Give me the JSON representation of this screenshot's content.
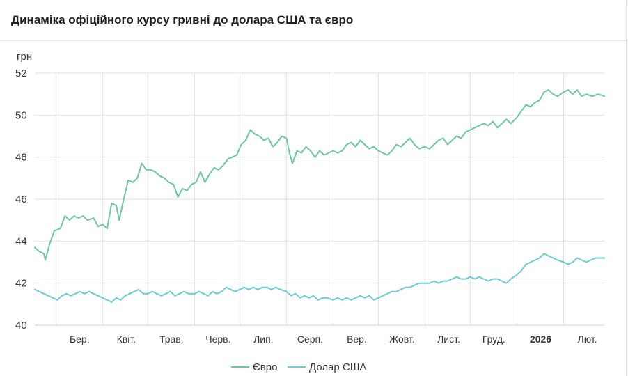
{
  "header": {
    "title": "Динаміка офіційного курсу гривні до долара США та євро"
  },
  "chart_data": {
    "type": "line",
    "title": "Динаміка офіційного курсу гривні до долара США та євро",
    "ylabel": "грн",
    "ylim": [
      40,
      52
    ],
    "yticks": [
      40,
      42,
      44,
      46,
      48,
      50,
      52
    ],
    "xlim": [
      "2025-02-15",
      "2026-02-28"
    ],
    "xticks": [
      {
        "date": "2025-03-01",
        "label": "Бер.",
        "bold": false
      },
      {
        "date": "2025-04-01",
        "label": "Квіт.",
        "bold": false
      },
      {
        "date": "2025-05-01",
        "label": "Трав.",
        "bold": false
      },
      {
        "date": "2025-06-01",
        "label": "Черв.",
        "bold": false
      },
      {
        "date": "2025-07-01",
        "label": "Лип.",
        "bold": false
      },
      {
        "date": "2025-08-01",
        "label": "Серп.",
        "bold": false
      },
      {
        "date": "2025-09-01",
        "label": "Вер.",
        "bold": false
      },
      {
        "date": "2025-10-01",
        "label": "Жовт.",
        "bold": false
      },
      {
        "date": "2025-11-01",
        "label": "Лист.",
        "bold": false
      },
      {
        "date": "2025-12-01",
        "label": "Груд.",
        "bold": false
      },
      {
        "date": "2026-01-01",
        "label": "2026",
        "bold": true
      },
      {
        "date": "2026-02-01",
        "label": "Лют.",
        "bold": false
      }
    ],
    "grid": true,
    "legend_position": "bottom-center",
    "series": [
      {
        "name": "Євро",
        "color": "#6cc89b",
        "points": [
          [
            "2025-02-15",
            43.7
          ],
          [
            "2025-02-18",
            43.5
          ],
          [
            "2025-02-21",
            43.4
          ],
          [
            "2025-02-22",
            43.1
          ],
          [
            "2025-02-25",
            43.9
          ],
          [
            "2025-02-28",
            44.5
          ],
          [
            "2025-03-04",
            44.6
          ],
          [
            "2025-03-07",
            45.2
          ],
          [
            "2025-03-10",
            45.0
          ],
          [
            "2025-03-13",
            45.2
          ],
          [
            "2025-03-16",
            45.1
          ],
          [
            "2025-03-19",
            45.2
          ],
          [
            "2025-03-22",
            45.0
          ],
          [
            "2025-03-26",
            45.1
          ],
          [
            "2025-03-29",
            44.7
          ],
          [
            "2025-04-01",
            44.8
          ],
          [
            "2025-04-04",
            44.6
          ],
          [
            "2025-04-07",
            45.8
          ],
          [
            "2025-04-10",
            45.7
          ],
          [
            "2025-04-12",
            45.0
          ],
          [
            "2025-04-15",
            46.0
          ],
          [
            "2025-04-18",
            46.9
          ],
          [
            "2025-04-21",
            46.8
          ],
          [
            "2025-04-24",
            47.0
          ],
          [
            "2025-04-27",
            47.7
          ],
          [
            "2025-04-30",
            47.4
          ],
          [
            "2025-05-03",
            47.4
          ],
          [
            "2025-05-06",
            47.3
          ],
          [
            "2025-05-09",
            47.1
          ],
          [
            "2025-05-12",
            47.0
          ],
          [
            "2025-05-15",
            46.8
          ],
          [
            "2025-05-18",
            46.7
          ],
          [
            "2025-05-21",
            46.1
          ],
          [
            "2025-05-24",
            46.5
          ],
          [
            "2025-05-27",
            46.4
          ],
          [
            "2025-05-30",
            46.7
          ],
          [
            "2025-06-02",
            46.8
          ],
          [
            "2025-06-05",
            47.3
          ],
          [
            "2025-06-08",
            46.8
          ],
          [
            "2025-06-11",
            47.2
          ],
          [
            "2025-06-14",
            47.5
          ],
          [
            "2025-06-17",
            47.4
          ],
          [
            "2025-06-20",
            47.6
          ],
          [
            "2025-06-23",
            47.9
          ],
          [
            "2025-06-26",
            48.0
          ],
          [
            "2025-06-29",
            48.1
          ],
          [
            "2025-07-02",
            48.6
          ],
          [
            "2025-07-05",
            48.8
          ],
          [
            "2025-07-08",
            49.3
          ],
          [
            "2025-07-11",
            49.1
          ],
          [
            "2025-07-14",
            49.0
          ],
          [
            "2025-07-17",
            48.8
          ],
          [
            "2025-07-20",
            48.9
          ],
          [
            "2025-07-23",
            48.5
          ],
          [
            "2025-07-26",
            48.7
          ],
          [
            "2025-07-29",
            49.0
          ],
          [
            "2025-08-01",
            48.9
          ],
          [
            "2025-08-03",
            48.2
          ],
          [
            "2025-08-05",
            47.7
          ],
          [
            "2025-08-08",
            48.3
          ],
          [
            "2025-08-11",
            48.2
          ],
          [
            "2025-08-14",
            48.5
          ],
          [
            "2025-08-17",
            48.3
          ],
          [
            "2025-08-20",
            48.0
          ],
          [
            "2025-08-23",
            48.3
          ],
          [
            "2025-08-26",
            48.1
          ],
          [
            "2025-08-29",
            48.2
          ],
          [
            "2025-09-01",
            48.3
          ],
          [
            "2025-09-04",
            48.2
          ],
          [
            "2025-09-07",
            48.3
          ],
          [
            "2025-09-10",
            48.6
          ],
          [
            "2025-09-13",
            48.7
          ],
          [
            "2025-09-16",
            48.5
          ],
          [
            "2025-09-19",
            48.8
          ],
          [
            "2025-09-22",
            48.6
          ],
          [
            "2025-09-25",
            48.4
          ],
          [
            "2025-09-28",
            48.5
          ],
          [
            "2025-10-01",
            48.3
          ],
          [
            "2025-10-04",
            48.2
          ],
          [
            "2025-10-07",
            48.1
          ],
          [
            "2025-10-10",
            48.3
          ],
          [
            "2025-10-13",
            48.6
          ],
          [
            "2025-10-16",
            48.5
          ],
          [
            "2025-10-19",
            48.7
          ],
          [
            "2025-10-22",
            48.9
          ],
          [
            "2025-10-25",
            48.6
          ],
          [
            "2025-10-28",
            48.4
          ],
          [
            "2025-11-01",
            48.5
          ],
          [
            "2025-11-04",
            48.4
          ],
          [
            "2025-11-07",
            48.6
          ],
          [
            "2025-11-10",
            48.8
          ],
          [
            "2025-11-13",
            48.9
          ],
          [
            "2025-11-16",
            48.6
          ],
          [
            "2025-11-19",
            48.8
          ],
          [
            "2025-11-22",
            49.0
          ],
          [
            "2025-11-25",
            48.9
          ],
          [
            "2025-11-28",
            49.2
          ],
          [
            "2025-12-01",
            49.3
          ],
          [
            "2025-12-04",
            49.4
          ],
          [
            "2025-12-07",
            49.5
          ],
          [
            "2025-12-10",
            49.6
          ],
          [
            "2025-12-13",
            49.5
          ],
          [
            "2025-12-16",
            49.7
          ],
          [
            "2025-12-19",
            49.4
          ],
          [
            "2025-12-22",
            49.6
          ],
          [
            "2025-12-25",
            49.8
          ],
          [
            "2025-12-28",
            49.6
          ],
          [
            "2026-01-01",
            49.9
          ],
          [
            "2026-01-04",
            50.2
          ],
          [
            "2026-01-07",
            50.5
          ],
          [
            "2026-01-10",
            50.4
          ],
          [
            "2026-01-13",
            50.6
          ],
          [
            "2026-01-16",
            50.7
          ],
          [
            "2026-01-19",
            51.1
          ],
          [
            "2026-01-22",
            51.2
          ],
          [
            "2026-01-25",
            51.0
          ],
          [
            "2026-01-28",
            50.9
          ],
          [
            "2026-02-01",
            51.1
          ],
          [
            "2026-02-04",
            51.2
          ],
          [
            "2026-02-07",
            51.0
          ],
          [
            "2026-02-10",
            51.2
          ],
          [
            "2026-02-13",
            50.9
          ],
          [
            "2026-02-16",
            51.0
          ],
          [
            "2026-02-20",
            50.9
          ],
          [
            "2026-02-24",
            51.0
          ],
          [
            "2026-02-28",
            50.9
          ]
        ]
      },
      {
        "name": "Долар США",
        "color": "#6dccd0",
        "points": [
          [
            "2025-02-15",
            41.7
          ],
          [
            "2025-02-18",
            41.6
          ],
          [
            "2025-02-21",
            41.5
          ],
          [
            "2025-02-24",
            41.4
          ],
          [
            "2025-02-27",
            41.3
          ],
          [
            "2025-03-02",
            41.2
          ],
          [
            "2025-03-05",
            41.4
          ],
          [
            "2025-03-08",
            41.5
          ],
          [
            "2025-03-11",
            41.4
          ],
          [
            "2025-03-14",
            41.5
          ],
          [
            "2025-03-17",
            41.6
          ],
          [
            "2025-03-20",
            41.5
          ],
          [
            "2025-03-23",
            41.6
          ],
          [
            "2025-03-26",
            41.5
          ],
          [
            "2025-03-29",
            41.4
          ],
          [
            "2025-04-01",
            41.3
          ],
          [
            "2025-04-04",
            41.2
          ],
          [
            "2025-04-07",
            41.1
          ],
          [
            "2025-04-10",
            41.3
          ],
          [
            "2025-04-13",
            41.2
          ],
          [
            "2025-04-16",
            41.4
          ],
          [
            "2025-04-19",
            41.5
          ],
          [
            "2025-04-22",
            41.6
          ],
          [
            "2025-04-25",
            41.7
          ],
          [
            "2025-04-28",
            41.5
          ],
          [
            "2025-05-01",
            41.5
          ],
          [
            "2025-05-04",
            41.6
          ],
          [
            "2025-05-07",
            41.5
          ],
          [
            "2025-05-10",
            41.4
          ],
          [
            "2025-05-13",
            41.5
          ],
          [
            "2025-05-16",
            41.6
          ],
          [
            "2025-05-19",
            41.4
          ],
          [
            "2025-05-22",
            41.5
          ],
          [
            "2025-05-25",
            41.6
          ],
          [
            "2025-05-28",
            41.5
          ],
          [
            "2025-06-01",
            41.5
          ],
          [
            "2025-06-04",
            41.6
          ],
          [
            "2025-06-07",
            41.5
          ],
          [
            "2025-06-10",
            41.4
          ],
          [
            "2025-06-13",
            41.6
          ],
          [
            "2025-06-16",
            41.5
          ],
          [
            "2025-06-19",
            41.6
          ],
          [
            "2025-06-22",
            41.8
          ],
          [
            "2025-06-25",
            41.7
          ],
          [
            "2025-06-28",
            41.6
          ],
          [
            "2025-07-01",
            41.7
          ],
          [
            "2025-07-04",
            41.8
          ],
          [
            "2025-07-07",
            41.7
          ],
          [
            "2025-07-10",
            41.8
          ],
          [
            "2025-07-13",
            41.7
          ],
          [
            "2025-07-16",
            41.8
          ],
          [
            "2025-07-19",
            41.8
          ],
          [
            "2025-07-22",
            41.7
          ],
          [
            "2025-07-25",
            41.8
          ],
          [
            "2025-07-28",
            41.7
          ],
          [
            "2025-08-01",
            41.6
          ],
          [
            "2025-08-04",
            41.4
          ],
          [
            "2025-08-07",
            41.5
          ],
          [
            "2025-08-10",
            41.3
          ],
          [
            "2025-08-13",
            41.4
          ],
          [
            "2025-08-16",
            41.3
          ],
          [
            "2025-08-19",
            41.4
          ],
          [
            "2025-08-22",
            41.2
          ],
          [
            "2025-08-25",
            41.3
          ],
          [
            "2025-08-28",
            41.3
          ],
          [
            "2025-09-01",
            41.2
          ],
          [
            "2025-09-04",
            41.3
          ],
          [
            "2025-09-07",
            41.2
          ],
          [
            "2025-09-10",
            41.3
          ],
          [
            "2025-09-13",
            41.2
          ],
          [
            "2025-09-16",
            41.3
          ],
          [
            "2025-09-19",
            41.4
          ],
          [
            "2025-09-22",
            41.3
          ],
          [
            "2025-09-25",
            41.4
          ],
          [
            "2025-09-28",
            41.2
          ],
          [
            "2025-10-01",
            41.3
          ],
          [
            "2025-10-04",
            41.4
          ],
          [
            "2025-10-07",
            41.5
          ],
          [
            "2025-10-10",
            41.6
          ],
          [
            "2025-10-13",
            41.6
          ],
          [
            "2025-10-16",
            41.7
          ],
          [
            "2025-10-19",
            41.8
          ],
          [
            "2025-10-22",
            41.8
          ],
          [
            "2025-10-25",
            41.9
          ],
          [
            "2025-10-28",
            42.0
          ],
          [
            "2025-11-01",
            42.0
          ],
          [
            "2025-11-04",
            42.0
          ],
          [
            "2025-11-07",
            42.1
          ],
          [
            "2025-11-10",
            42.0
          ],
          [
            "2025-11-13",
            42.1
          ],
          [
            "2025-11-16",
            42.1
          ],
          [
            "2025-11-19",
            42.2
          ],
          [
            "2025-11-22",
            42.3
          ],
          [
            "2025-11-25",
            42.2
          ],
          [
            "2025-11-28",
            42.2
          ],
          [
            "2025-12-01",
            42.3
          ],
          [
            "2025-12-04",
            42.2
          ],
          [
            "2025-12-07",
            42.3
          ],
          [
            "2025-12-10",
            42.2
          ],
          [
            "2025-12-13",
            42.1
          ],
          [
            "2025-12-16",
            42.2
          ],
          [
            "2025-12-19",
            42.2
          ],
          [
            "2025-12-22",
            42.1
          ],
          [
            "2025-12-25",
            42.0
          ],
          [
            "2025-12-28",
            42.2
          ],
          [
            "2026-01-01",
            42.4
          ],
          [
            "2026-01-04",
            42.6
          ],
          [
            "2026-01-07",
            42.9
          ],
          [
            "2026-01-10",
            43.0
          ],
          [
            "2026-01-13",
            43.1
          ],
          [
            "2026-01-16",
            43.2
          ],
          [
            "2026-01-19",
            43.4
          ],
          [
            "2026-01-22",
            43.3
          ],
          [
            "2026-01-25",
            43.2
          ],
          [
            "2026-01-28",
            43.1
          ],
          [
            "2026-02-01",
            43.0
          ],
          [
            "2026-02-04",
            42.9
          ],
          [
            "2026-02-07",
            43.0
          ],
          [
            "2026-02-10",
            43.2
          ],
          [
            "2026-02-13",
            43.1
          ],
          [
            "2026-02-16",
            43.0
          ],
          [
            "2026-02-19",
            43.1
          ],
          [
            "2026-02-22",
            43.2
          ],
          [
            "2026-02-28",
            43.2
          ]
        ]
      }
    ]
  }
}
